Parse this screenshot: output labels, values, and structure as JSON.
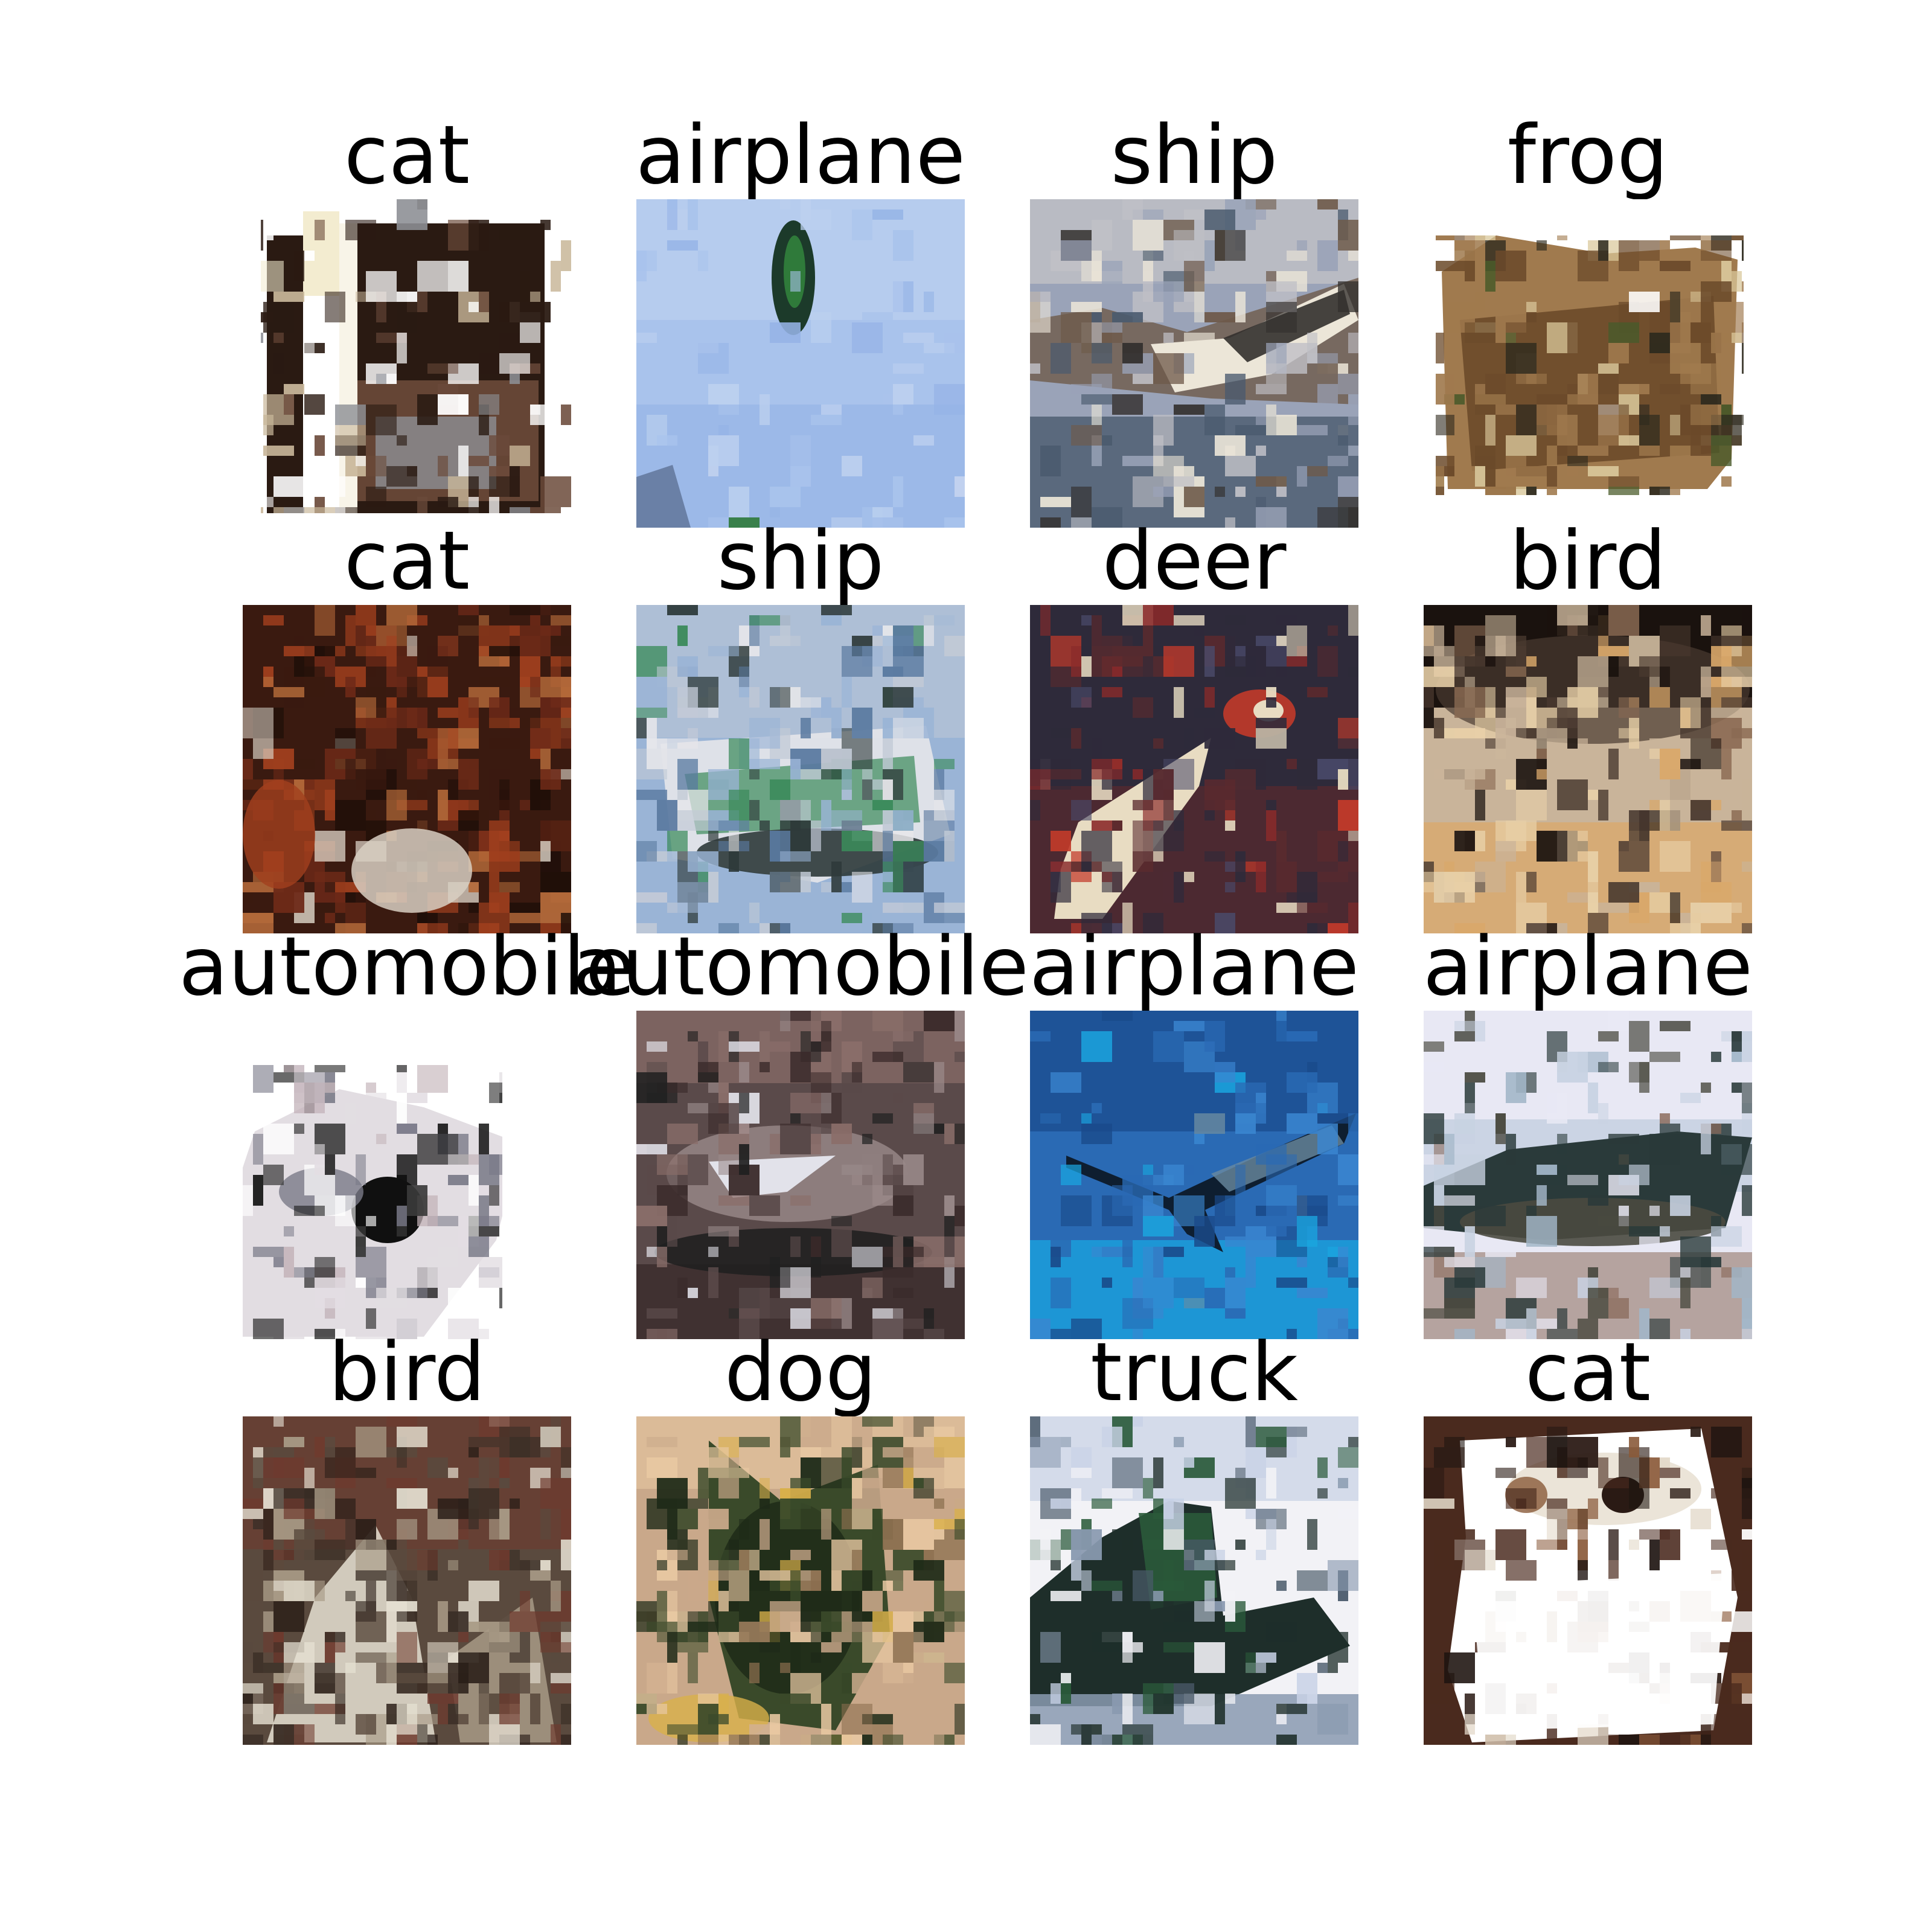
{
  "figure": {
    "rows": 4,
    "cols": 4,
    "samples": [
      {
        "label": "cat",
        "palette": [
          "#ffffff",
          "#2a1a12",
          "#6b4a3a",
          "#c9b79a",
          "#8d8f95",
          "#f3ecd0"
        ],
        "shape": "cat1"
      },
      {
        "label": "airplane",
        "palette": [
          "#a9c3ec",
          "#bcd0ef",
          "#95b3e6",
          "#1c3a2a",
          "#2f7a3a",
          "#d6dff2"
        ],
        "shape": "plane1"
      },
      {
        "label": "ship",
        "palette": [
          "#9aa3b8",
          "#c0c0c6",
          "#ece6d8",
          "#33302e",
          "#4a5a6e",
          "#6e5a4a"
        ],
        "shape": "ship1"
      },
      {
        "label": "frog",
        "palette": [
          "#ffffff",
          "#6b4a2a",
          "#a07a4e",
          "#2e2a1e",
          "#d9c79a",
          "#4a5a2a"
        ],
        "shape": "frog1"
      },
      {
        "label": "cat",
        "palette": [
          "#3a1a10",
          "#6e2a18",
          "#a2401e",
          "#b46a3a",
          "#d8cfc2",
          "#1e0e08"
        ],
        "shape": "cat2"
      },
      {
        "label": "ship",
        "palette": [
          "#9ab4d6",
          "#c2cad6",
          "#5a7aa0",
          "#2e3a3a",
          "#3a8a5a",
          "#e6e6ea"
        ],
        "shape": "ship2"
      },
      {
        "label": "deer",
        "palette": [
          "#2e2a3a",
          "#5a2a2e",
          "#8a2a2a",
          "#e8dcc2",
          "#c23a2a",
          "#4a4a6a"
        ],
        "shape": "deer1"
      },
      {
        "label": "bird",
        "palette": [
          "#1a120e",
          "#4a3a30",
          "#c9b49a",
          "#e8d0a8",
          "#d9a86a",
          "#8a6a52"
        ],
        "shape": "bird1"
      },
      {
        "label": "automobile",
        "palette": [
          "#ffffff",
          "#e2dde2",
          "#7a7a88",
          "#101010",
          "#3a3a3a",
          "#c2b2b8"
        ],
        "shape": "car1"
      },
      {
        "label": "automobile",
        "palette": [
          "#5a4a4a",
          "#8a6e6a",
          "#3a2a2a",
          "#e2e2ea",
          "#9a8a8a",
          "#202020"
        ],
        "shape": "car2"
      },
      {
        "label": "airplane",
        "palette": [
          "#2a6ab4",
          "#3a86d0",
          "#1a4a8a",
          "#0e1e30",
          "#6a8aa0",
          "#1aa6e0"
        ],
        "shape": "plane2"
      },
      {
        "label": "airplane",
        "palette": [
          "#e8e8f4",
          "#c8d2e2",
          "#2a3a3a",
          "#4a4a40",
          "#8a6a5a",
          "#a2b6c8"
        ],
        "shape": "plane3"
      },
      {
        "label": "bird",
        "palette": [
          "#5a4a3e",
          "#6e3a2e",
          "#3a2e26",
          "#e6e0d2",
          "#a89a86",
          "#2a1e18"
        ],
        "shape": "bird2"
      },
      {
        "label": "dog",
        "palette": [
          "#c9a88a",
          "#3a4a2a",
          "#1e2a18",
          "#e8c8a2",
          "#d9b04a",
          "#8a6e4e"
        ],
        "shape": "dog1"
      },
      {
        "label": "truck",
        "palette": [
          "#f2f2f6",
          "#c8d2e6",
          "#1e2e2a",
          "#2a5a3a",
          "#8a9ab0",
          "#4a5a6a"
        ],
        "shape": "truck1"
      },
      {
        "label": "cat",
        "palette": [
          "#ffffff",
          "#4a2a1e",
          "#2a1a14",
          "#8a5a3a",
          "#e2d8c8",
          "#1e1410"
        ],
        "shape": "cat3"
      }
    ]
  }
}
